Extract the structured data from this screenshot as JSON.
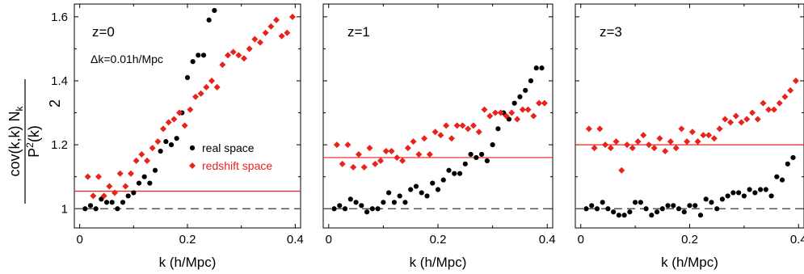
{
  "chart_data": [
    {
      "type": "scatter",
      "panel_label": "z=0",
      "annotation": "Δk=0.01h/Mpc",
      "xlabel": "k (h/Mpc)",
      "xlim": [
        -0.01,
        0.41
      ],
      "ylim": [
        0.94,
        1.64
      ],
      "xticks": [
        0,
        0.2,
        0.4
      ],
      "xtick_labels": [
        "0",
        "0.2",
        "0.4"
      ],
      "yticks": [
        1.0,
        1.2,
        1.4,
        1.6
      ],
      "ytick_labels": [
        "1",
        "1.2",
        "1.4",
        "1.6"
      ],
      "hlines": [
        {
          "y": 1.0,
          "style": "dashed",
          "color": "#555555"
        },
        {
          "y": 1.055,
          "style": "solid",
          "color": "#e8231c"
        }
      ],
      "legend": {
        "placement": "center-right",
        "entries": [
          {
            "label": "real space",
            "color": "#000000"
          },
          {
            "label": "redshift space",
            "color": "#e8231c"
          }
        ]
      },
      "series": [
        {
          "name": "real space",
          "marker": "circle",
          "color": "#000000",
          "x": [
            0.01,
            0.02,
            0.03,
            0.04,
            0.05,
            0.06,
            0.07,
            0.08,
            0.09,
            0.1,
            0.11,
            0.12,
            0.13,
            0.14,
            0.15,
            0.16,
            0.17,
            0.18,
            0.19,
            0.2,
            0.21,
            0.22,
            0.23,
            0.24,
            0.25
          ],
          "y": [
            1.0,
            1.01,
            1.0,
            1.03,
            1.02,
            1.02,
            1.0,
            1.02,
            1.04,
            1.05,
            1.08,
            1.1,
            1.08,
            1.12,
            1.18,
            1.21,
            1.2,
            1.22,
            1.3,
            1.41,
            1.46,
            1.48,
            1.48,
            1.59,
            1.62
          ]
        },
        {
          "name": "redshift space",
          "marker": "diamond",
          "color": "#e8231c",
          "x": [
            0.015,
            0.025,
            0.035,
            0.045,
            0.055,
            0.065,
            0.075,
            0.085,
            0.095,
            0.105,
            0.115,
            0.125,
            0.135,
            0.145,
            0.155,
            0.165,
            0.175,
            0.185,
            0.195,
            0.205,
            0.215,
            0.225,
            0.235,
            0.245,
            0.255,
            0.265,
            0.275,
            0.285,
            0.295,
            0.305,
            0.315,
            0.325,
            0.335,
            0.345,
            0.355,
            0.365,
            0.375,
            0.385,
            0.395
          ],
          "y": [
            1.1,
            1.04,
            1.1,
            1.04,
            1.07,
            1.05,
            1.11,
            1.07,
            1.11,
            1.15,
            1.17,
            1.15,
            1.19,
            1.21,
            1.25,
            1.27,
            1.28,
            1.3,
            1.26,
            1.31,
            1.35,
            1.36,
            1.38,
            1.4,
            1.38,
            1.45,
            1.48,
            1.49,
            1.48,
            1.47,
            1.5,
            1.53,
            1.52,
            1.55,
            1.57,
            1.59,
            1.54,
            1.55,
            1.6
          ]
        }
      ]
    },
    {
      "type": "scatter",
      "panel_label": "z=1",
      "xlabel": "k (h/Mpc)",
      "xlim": [
        -0.01,
        0.41
      ],
      "ylim": [
        0.94,
        1.64
      ],
      "xticks": [
        0,
        0.2,
        0.4
      ],
      "xtick_labels": [
        "0",
        "0.2",
        "0.4"
      ],
      "hlines": [
        {
          "y": 1.0,
          "style": "dashed",
          "color": "#555555"
        },
        {
          "y": 1.16,
          "style": "solid",
          "color": "#e8231c"
        }
      ],
      "series": [
        {
          "name": "real space",
          "marker": "circle",
          "color": "#000000",
          "x": [
            0.01,
            0.02,
            0.03,
            0.04,
            0.05,
            0.06,
            0.07,
            0.08,
            0.09,
            0.1,
            0.11,
            0.12,
            0.13,
            0.14,
            0.15,
            0.16,
            0.17,
            0.18,
            0.19,
            0.2,
            0.21,
            0.22,
            0.23,
            0.24,
            0.25,
            0.26,
            0.27,
            0.28,
            0.29,
            0.3,
            0.31,
            0.32,
            0.33,
            0.34,
            0.35,
            0.36,
            0.37,
            0.38,
            0.39
          ],
          "y": [
            1.0,
            1.01,
            1.0,
            1.03,
            1.02,
            1.01,
            0.99,
            1.0,
            1.0,
            1.02,
            1.05,
            1.02,
            1.04,
            1.02,
            1.06,
            1.07,
            1.05,
            1.04,
            1.08,
            1.06,
            1.09,
            1.12,
            1.11,
            1.11,
            1.14,
            1.17,
            1.16,
            1.17,
            1.15,
            1.2,
            1.25,
            1.3,
            1.28,
            1.33,
            1.35,
            1.37,
            1.4,
            1.44,
            1.44
          ]
        },
        {
          "name": "redshift space",
          "marker": "diamond",
          "color": "#e8231c",
          "x": [
            0.015,
            0.025,
            0.035,
            0.045,
            0.055,
            0.065,
            0.075,
            0.085,
            0.095,
            0.105,
            0.115,
            0.125,
            0.135,
            0.145,
            0.155,
            0.165,
            0.175,
            0.185,
            0.195,
            0.205,
            0.215,
            0.225,
            0.235,
            0.245,
            0.255,
            0.265,
            0.275,
            0.285,
            0.295,
            0.305,
            0.315,
            0.325,
            0.335,
            0.345,
            0.355,
            0.365,
            0.375,
            0.385,
            0.395
          ],
          "y": [
            1.2,
            1.14,
            1.2,
            1.13,
            1.17,
            1.13,
            1.19,
            1.14,
            1.15,
            1.18,
            1.18,
            1.16,
            1.15,
            1.19,
            1.21,
            1.17,
            1.22,
            1.17,
            1.24,
            1.23,
            1.26,
            1.22,
            1.26,
            1.26,
            1.25,
            1.26,
            1.24,
            1.31,
            1.29,
            1.3,
            1.3,
            1.29,
            1.3,
            1.28,
            1.31,
            1.31,
            1.29,
            1.33,
            1.33
          ]
        }
      ]
    },
    {
      "type": "scatter",
      "panel_label": "z=3",
      "xlabel": "k (h/Mpc)",
      "xlim": [
        -0.01,
        0.41
      ],
      "ylim": [
        0.94,
        1.64
      ],
      "xticks": [
        0,
        0.2,
        0.4
      ],
      "xtick_labels": [
        "0",
        "0.2",
        "0.4"
      ],
      "hlines": [
        {
          "y": 1.0,
          "style": "dashed",
          "color": "#555555"
        },
        {
          "y": 1.2,
          "style": "solid",
          "color": "#e8231c"
        }
      ],
      "series": [
        {
          "name": "real space",
          "marker": "circle",
          "color": "#000000",
          "x": [
            0.01,
            0.02,
            0.03,
            0.04,
            0.05,
            0.06,
            0.07,
            0.08,
            0.09,
            0.1,
            0.11,
            0.12,
            0.13,
            0.14,
            0.15,
            0.16,
            0.17,
            0.18,
            0.19,
            0.2,
            0.21,
            0.22,
            0.23,
            0.24,
            0.25,
            0.26,
            0.27,
            0.28,
            0.29,
            0.3,
            0.31,
            0.32,
            0.33,
            0.34,
            0.35,
            0.36,
            0.37,
            0.38,
            0.39
          ],
          "y": [
            1.0,
            1.01,
            1.0,
            1.02,
            1.0,
            0.99,
            0.98,
            0.98,
            0.99,
            1.02,
            1.02,
            1.0,
            0.98,
            0.99,
            1.0,
            1.01,
            1.01,
            1.0,
            0.99,
            1.01,
            1.01,
            0.98,
            1.03,
            1.02,
            1.0,
            1.03,
            1.04,
            1.05,
            1.05,
            1.04,
            1.06,
            1.05,
            1.06,
            1.06,
            1.04,
            1.1,
            1.09,
            1.14,
            1.16
          ]
        },
        {
          "name": "redshift space",
          "marker": "diamond",
          "color": "#e8231c",
          "x": [
            0.015,
            0.025,
            0.035,
            0.045,
            0.055,
            0.065,
            0.075,
            0.085,
            0.095,
            0.105,
            0.115,
            0.125,
            0.135,
            0.145,
            0.155,
            0.165,
            0.175,
            0.185,
            0.195,
            0.205,
            0.215,
            0.225,
            0.235,
            0.245,
            0.255,
            0.265,
            0.275,
            0.285,
            0.295,
            0.305,
            0.315,
            0.325,
            0.335,
            0.345,
            0.355,
            0.365,
            0.375,
            0.385,
            0.395
          ],
          "y": [
            1.25,
            1.19,
            1.25,
            1.2,
            1.19,
            1.21,
            1.12,
            1.2,
            1.19,
            1.21,
            1.23,
            1.2,
            1.19,
            1.22,
            1.18,
            1.21,
            1.19,
            1.25,
            1.21,
            1.24,
            1.21,
            1.23,
            1.23,
            1.22,
            1.25,
            1.28,
            1.27,
            1.29,
            1.27,
            1.28,
            1.3,
            1.28,
            1.33,
            1.31,
            1.31,
            1.33,
            1.35,
            1.37,
            1.4
          ]
        }
      ]
    }
  ],
  "ylabel": {
    "numerator": "cov(k,k) N",
    "numerator_sub": "k",
    "denominator": "P",
    "denominator_sup": "2",
    "denominator_arg": "(k)",
    "divisor": "2"
  }
}
